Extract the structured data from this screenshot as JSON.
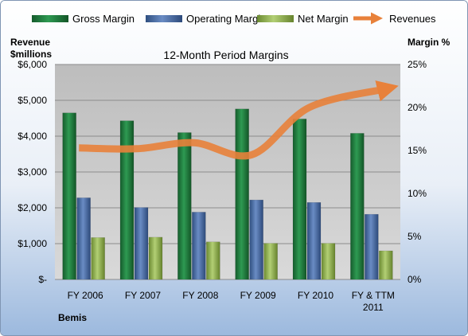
{
  "chart_data": {
    "type": "bar",
    "title": "12-Month Period Margins",
    "company": "Bemis",
    "categories": [
      "FY 2006",
      "FY 2007",
      "FY 2008",
      "FY 2009",
      "FY 2010",
      "FY & TTM 2011"
    ],
    "series": [
      {
        "name": "Gross Margin",
        "axis": "left",
        "color": "#1e7a3c",
        "values": [
          4650,
          4430,
          4100,
          4760,
          4480,
          4080
        ]
      },
      {
        "name": "Operating Margin",
        "axis": "left",
        "color": "#4a6ea7",
        "values": [
          2280,
          2010,
          1880,
          2220,
          2150,
          1820
        ]
      },
      {
        "name": "Net Margin",
        "axis": "left",
        "color": "#8cb04a",
        "values": [
          1170,
          1180,
          1050,
          1010,
          1010,
          800
        ]
      },
      {
        "name": "Revenues",
        "axis": "right",
        "type": "line",
        "color": "#e8813a",
        "values": [
          15.3,
          15.2,
          15.9,
          14.5,
          20.0,
          22.2
        ]
      }
    ],
    "y_left": {
      "label_line1": "Revenue",
      "label_line2": "$millions",
      "ylim": [
        0,
        6000
      ],
      "ticks": [
        "$-",
        "$1,000",
        "$2,000",
        "$3,000",
        "$4,000",
        "$5,000",
        "$6,000"
      ]
    },
    "y_right": {
      "label": "Margin %",
      "ylim": [
        0,
        25
      ],
      "ticks": [
        "0%",
        "5%",
        "10%",
        "15%",
        "20%",
        "25%"
      ]
    },
    "grid": true,
    "legend_position": "top"
  }
}
